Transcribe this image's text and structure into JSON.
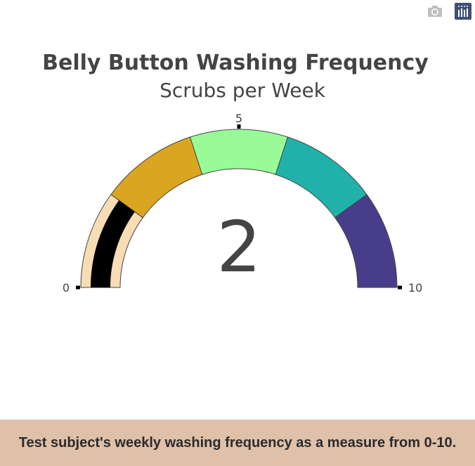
{
  "modebar": {
    "icons": [
      "camera-icon",
      "plotly-logo-icon"
    ]
  },
  "chart_data": {
    "type": "gauge",
    "title": "Belly Button Washing Frequency",
    "subtitle": "Scrubs per Week",
    "value": 2,
    "range": [
      0,
      10
    ],
    "ticks": [
      {
        "value": 0,
        "label": "0"
      },
      {
        "value": 5,
        "label": "5"
      },
      {
        "value": 10,
        "label": "10"
      }
    ],
    "steps": [
      {
        "range": [
          0,
          2
        ],
        "color": "#f7dcb4"
      },
      {
        "range": [
          2,
          4
        ],
        "color": "#daa520"
      },
      {
        "range": [
          4,
          6
        ],
        "color": "#98fb98"
      },
      {
        "range": [
          6,
          8
        ],
        "color": "#20b2aa"
      },
      {
        "range": [
          8,
          10
        ],
        "color": "#483d8b"
      }
    ],
    "bar_color": "#000000"
  },
  "caption": {
    "text": "Test subject's weekly washing frequency as a measure from 0-10."
  }
}
